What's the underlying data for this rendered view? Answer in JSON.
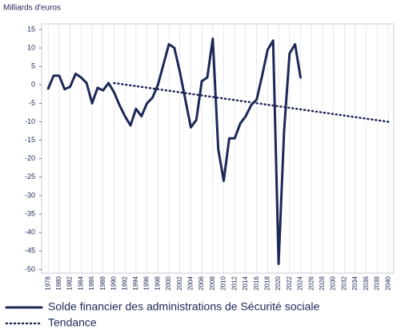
{
  "chart_data": {
    "type": "line",
    "y_label": "Milliards d'euros",
    "xlim": [
      1976.8,
      2041
    ],
    "ylim": [
      -51,
      16.5
    ],
    "xticks": [
      1978,
      1980,
      1982,
      1984,
      1986,
      1988,
      1990,
      1992,
      1994,
      1996,
      1998,
      2000,
      2002,
      2004,
      2006,
      2008,
      2010,
      2012,
      2014,
      2016,
      2018,
      2020,
      2022,
      2024,
      2026,
      2028,
      2030,
      2032,
      2034,
      2036,
      2038,
      2040
    ],
    "yticks": [
      -50,
      -45,
      -40,
      -35,
      -30,
      -25,
      -20,
      -15,
      -10,
      -5,
      0,
      5,
      10,
      15
    ],
    "grid": true,
    "series": [
      {
        "name": "Solde financier des administrations de Sécurité sociale",
        "color": "#1d2857",
        "style": "solid",
        "x": [
          1978,
          1979,
          1980,
          1981,
          1982,
          1983,
          1984,
          1985,
          1986,
          1987,
          1988,
          1989,
          1990,
          1991,
          1992,
          1993,
          1994,
          1995,
          1996,
          1997,
          1998,
          1999,
          2000,
          2001,
          2002,
          2003,
          2004,
          2005,
          2006,
          2007,
          2008,
          2009,
          2010,
          2011,
          2012,
          2013,
          2014,
          2015,
          2016,
          2017,
          2018,
          2019,
          2020,
          2021,
          2022,
          2023,
          2024
        ],
        "values": [
          -1,
          2.5,
          2.5,
          -1.2,
          -0.5,
          3,
          2,
          0.5,
          -5,
          -0.8,
          -1.5,
          0.5,
          -2,
          -5.5,
          -8.5,
          -11,
          -6.5,
          -8.5,
          -5,
          -3.5,
          0,
          5.5,
          11,
          10,
          3.5,
          -4,
          -11.5,
          -9.5,
          1,
          2,
          12.5,
          -17.5,
          -26,
          -14.5,
          -14.5,
          -10.5,
          -8.5,
          -5.5,
          -4,
          2.5,
          9.5,
          12,
          -48.5,
          -12.5,
          8.5,
          11,
          2
        ]
      },
      {
        "name": "Tendance",
        "color": "#1d2857",
        "style": "dotted",
        "x": [
          1990,
          2040
        ],
        "values": [
          0.5,
          -10
        ]
      }
    ]
  }
}
